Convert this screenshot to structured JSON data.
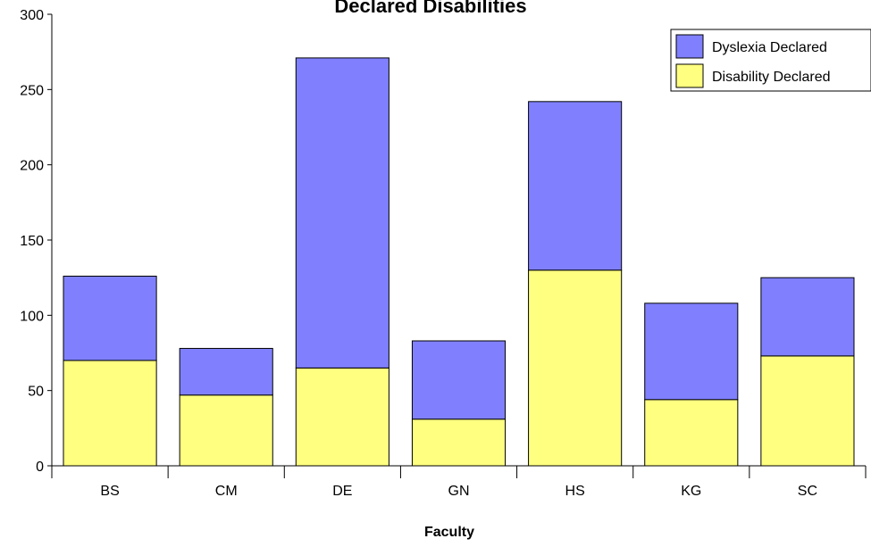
{
  "chart_data": {
    "type": "bar",
    "stacked": true,
    "title": "Declared Disabilities",
    "xlabel": "Faculty",
    "ylabel": "",
    "categories": [
      "BS",
      "CM",
      "DE",
      "GN",
      "HS",
      "KG",
      "SC"
    ],
    "series": [
      {
        "name": "Disability Declared",
        "color": "#ffff80",
        "values": [
          70,
          47,
          65,
          31,
          130,
          44,
          73
        ]
      },
      {
        "name": "Dyslexia Declared",
        "color": "#8080ff",
        "values": [
          56,
          31,
          206,
          52,
          112,
          64,
          52
        ]
      }
    ],
    "ylim": [
      0,
      300
    ],
    "yticks": [
      0,
      50,
      100,
      150,
      200,
      250,
      300
    ],
    "grid": false,
    "legend": {
      "position": "top-right",
      "order": [
        "Dyslexia Declared",
        "Disability Declared"
      ]
    }
  }
}
